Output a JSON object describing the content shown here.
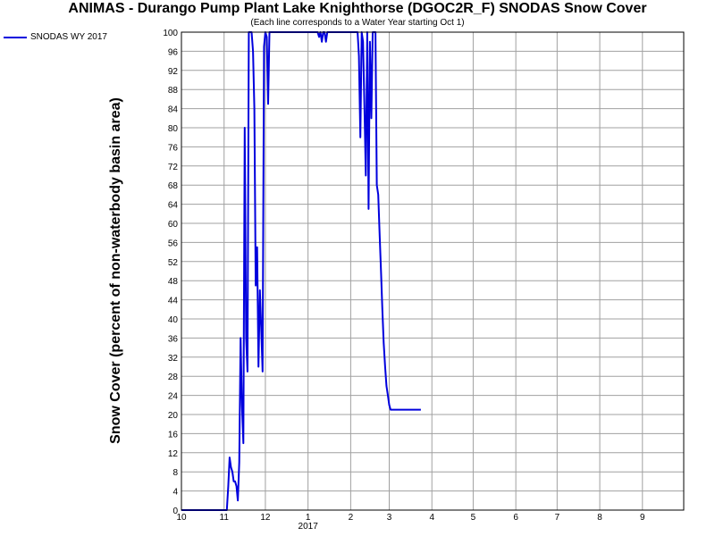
{
  "chart_data": {
    "type": "line",
    "title": "ANIMAS - Durango Pump Plant Lake Knighthorse (DGOC2R_F) SNODAS Snow Cover",
    "subtitle": "(Each line corresponds to a Water Year starting Oct 1)",
    "ylabel": "Snow Cover (percent of non-waterbody basin area)",
    "xlabel": "",
    "ylim": [
      0,
      100
    ],
    "xlim": [
      0,
      365
    ],
    "grid": true,
    "legend_position": "top-left",
    "y_ticks": [
      0,
      4,
      8,
      12,
      16,
      20,
      24,
      28,
      32,
      36,
      40,
      44,
      48,
      52,
      56,
      60,
      64,
      68,
      72,
      76,
      80,
      84,
      88,
      92,
      96,
      100
    ],
    "x_ticks": [
      {
        "label": "10",
        "day": 0
      },
      {
        "label": "11",
        "day": 31
      },
      {
        "label": "12",
        "day": 61
      },
      {
        "label": "1",
        "day": 92
      },
      {
        "label": "2",
        "day": 123
      },
      {
        "label": "3",
        "day": 151
      },
      {
        "label": "4",
        "day": 182
      },
      {
        "label": "5",
        "day": 212
      },
      {
        "label": "6",
        "day": 243
      },
      {
        "label": "7",
        "day": 273
      },
      {
        "label": "8",
        "day": 304
      },
      {
        "label": "9",
        "day": 335
      }
    ],
    "year_label": {
      "label": "2017",
      "day": 92
    },
    "series": [
      {
        "name": "SNODAS WY 2017",
        "color": "#0000dd",
        "x": [
          0,
          33,
          34,
          35,
          36,
          37,
          38,
          39,
          40,
          41,
          42,
          43,
          44,
          45,
          46,
          47,
          48,
          49,
          50,
          51,
          52,
          53,
          54,
          55,
          56,
          57,
          58,
          59,
          60,
          61,
          62,
          63,
          64,
          65,
          66,
          67,
          68,
          69,
          70,
          71,
          72,
          73,
          74,
          75,
          76,
          77,
          78,
          79,
          80,
          81,
          82,
          83,
          84,
          85,
          86,
          87,
          88,
          89,
          90,
          99,
          100,
          101,
          102,
          103,
          104,
          105,
          106,
          107,
          108,
          109,
          110,
          111,
          112,
          113,
          114,
          115,
          116,
          117,
          118,
          119,
          120,
          121,
          122,
          123,
          124,
          125,
          126,
          127,
          128,
          129,
          130,
          131,
          132,
          133,
          134,
          135,
          136,
          137,
          138,
          139,
          140,
          141,
          142,
          143,
          144,
          145,
          146,
          147,
          148,
          149,
          150,
          151,
          152,
          153,
          154,
          155,
          156,
          157,
          158,
          159,
          160,
          161,
          162,
          163,
          164,
          165,
          166,
          167,
          168,
          169,
          170,
          171,
          172,
          173,
          174
        ],
        "y": [
          0,
          0,
          5,
          11,
          9,
          8,
          6,
          6,
          5,
          2,
          10,
          36,
          22,
          14,
          80,
          36,
          29,
          100,
          100,
          100,
          96,
          84,
          47,
          55,
          30,
          46,
          38,
          29,
          97,
          100,
          99,
          85,
          100,
          100,
          100,
          100,
          100,
          100,
          100,
          100,
          100,
          100,
          100,
          100,
          100,
          100,
          100,
          100,
          100,
          100,
          100,
          100,
          100,
          100,
          100,
          100,
          100,
          100,
          100,
          100,
          99,
          100,
          98,
          100,
          100,
          98,
          100,
          100,
          100,
          100,
          100,
          100,
          100,
          100,
          100,
          100,
          100,
          100,
          100,
          100,
          100,
          100,
          100,
          100,
          100,
          100,
          100,
          100,
          100,
          95,
          78,
          100,
          98,
          84,
          70,
          100,
          63,
          98,
          82,
          100,
          100,
          100,
          68,
          66,
          58,
          50,
          42,
          35,
          30,
          26,
          24,
          22,
          21,
          21,
          21,
          21,
          21,
          21,
          21,
          21,
          21,
          21,
          21,
          21,
          21,
          21,
          21,
          21,
          21,
          21,
          21,
          21,
          21,
          21,
          21
        ]
      }
    ]
  }
}
